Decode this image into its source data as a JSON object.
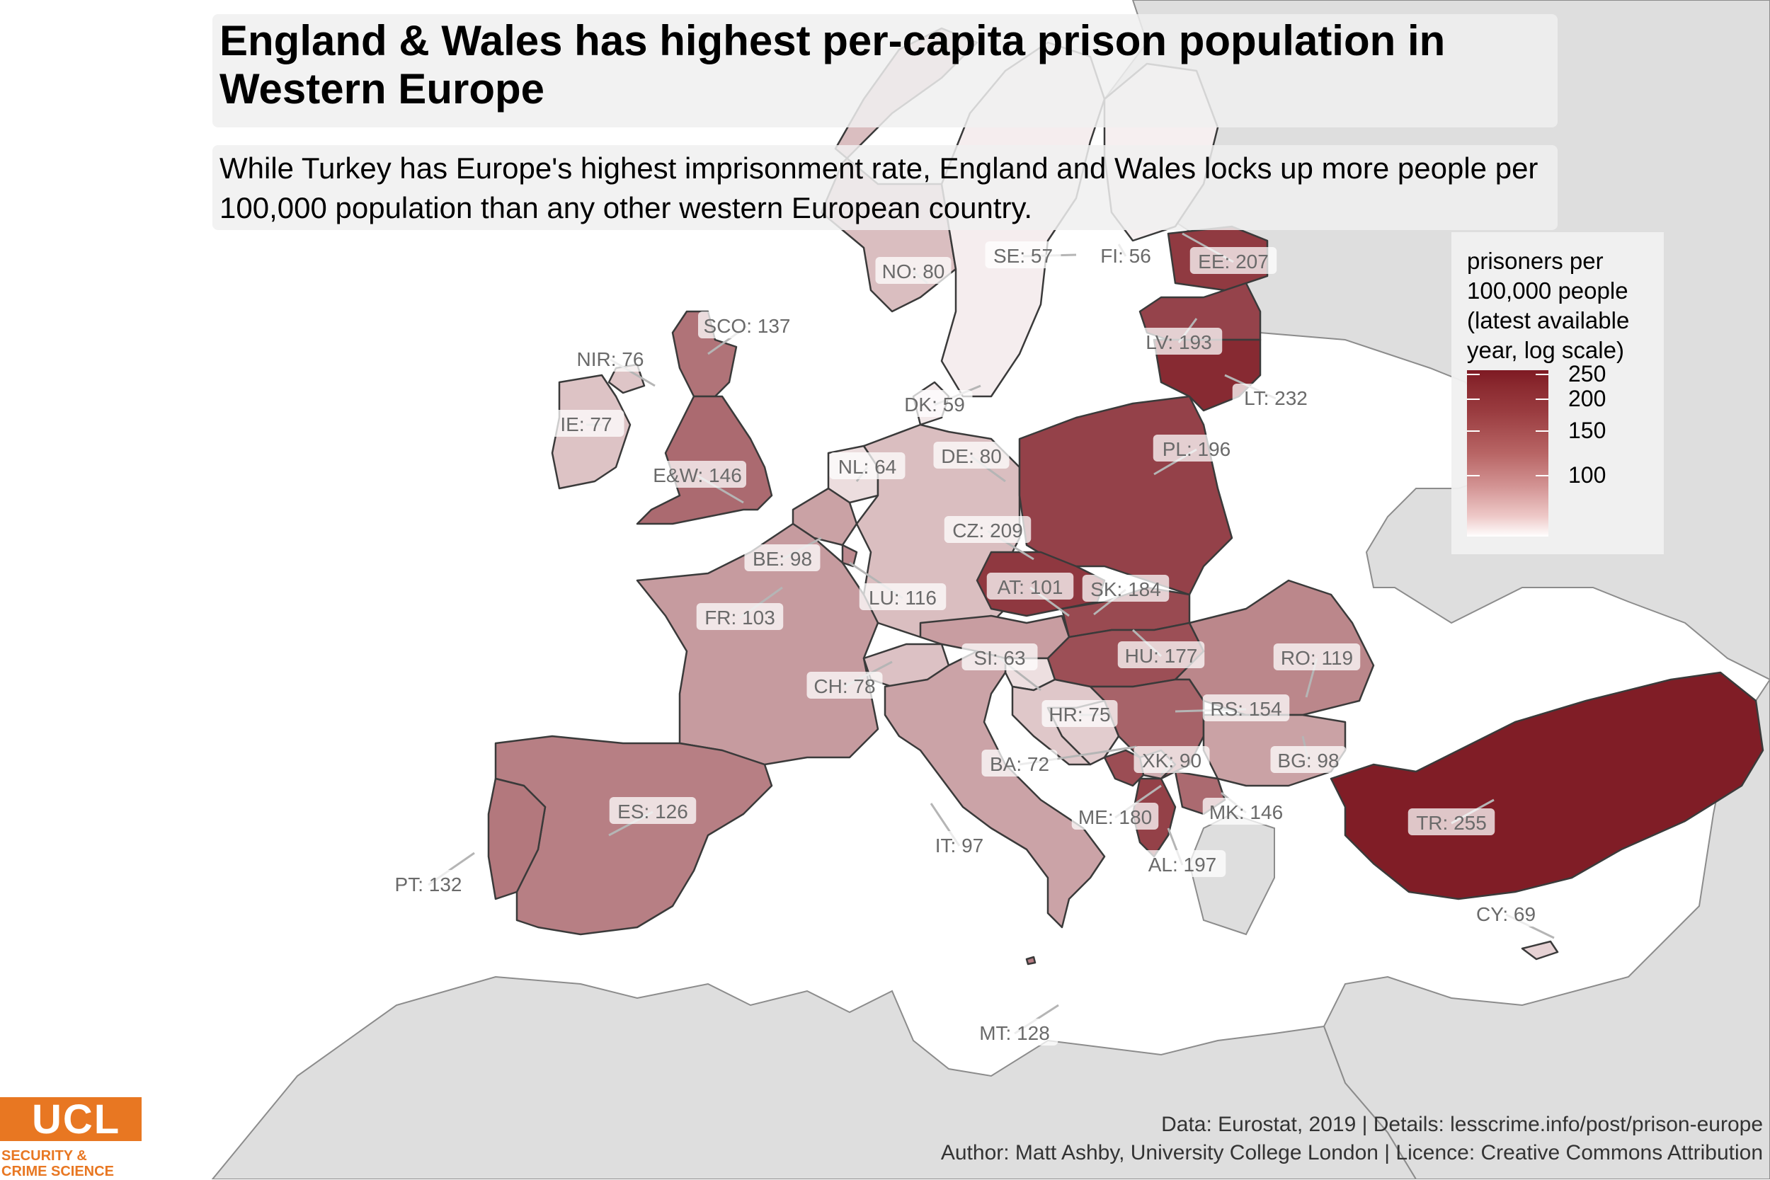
{
  "title": "England & Wales has highest per-capita prison population in Western Europe",
  "subtitle": "While Turkey has Europe's highest imprisonment rate, England and Wales locks up more people per 100,000 population than any other western European country.",
  "legend": {
    "title": "prisoners per 100,000 people (latest available year, log scale)",
    "ticks": [
      "250",
      "200",
      "150",
      "100"
    ],
    "scale": "log",
    "color_low": "#ffffff",
    "color_high": "#7e1a23"
  },
  "caption": {
    "line1": "Data: Eurostat, 2019 |  Details: lesscrime.info/post/prison-europe",
    "line2": "Author: Matt Ashby, University College London |  Licence: Creative Commons Attribution"
  },
  "logo": {
    "name": "UCL",
    "line1": "SECURITY &",
    "line2": "CRIME SCIENCE"
  },
  "countries": [
    {
      "code": "NO",
      "label": "NO: 80",
      "value": 80
    },
    {
      "code": "SE",
      "label": "SE: 57",
      "value": 57
    },
    {
      "code": "FI",
      "label": "FI: 56",
      "value": 56
    },
    {
      "code": "EE",
      "label": "EE: 207",
      "value": 207
    },
    {
      "code": "LV",
      "label": "LV: 193",
      "value": 193
    },
    {
      "code": "LT",
      "label": "LT: 232",
      "value": 232
    },
    {
      "code": "SCO",
      "label": "SCO: 137",
      "value": 137
    },
    {
      "code": "NIR",
      "label": "NIR: 76",
      "value": 76
    },
    {
      "code": "IE",
      "label": "IE: 77",
      "value": 77
    },
    {
      "code": "E&W",
      "label": "E&W: 146",
      "value": 146
    },
    {
      "code": "DK",
      "label": "DK: 59",
      "value": 59
    },
    {
      "code": "NL",
      "label": "NL: 64",
      "value": 64
    },
    {
      "code": "DE",
      "label": "DE: 80",
      "value": 80
    },
    {
      "code": "PL",
      "label": "PL: 196",
      "value": 196
    },
    {
      "code": "BE",
      "label": "BE: 98",
      "value": 98
    },
    {
      "code": "CZ",
      "label": "CZ: 209",
      "value": 209
    },
    {
      "code": "LU",
      "label": "LU: 116",
      "value": 116
    },
    {
      "code": "AT",
      "label": "AT: 101",
      "value": 101
    },
    {
      "code": "SK",
      "label": "SK: 184",
      "value": 184
    },
    {
      "code": "FR",
      "label": "FR: 103",
      "value": 103
    },
    {
      "code": "SI",
      "label": "SI: 63",
      "value": 63
    },
    {
      "code": "HU",
      "label": "HU: 177",
      "value": 177
    },
    {
      "code": "RO",
      "label": "RO: 119",
      "value": 119
    },
    {
      "code": "CH",
      "label": "CH: 78",
      "value": 78
    },
    {
      "code": "HR",
      "label": "HR: 75",
      "value": 75
    },
    {
      "code": "RS",
      "label": "RS: 154",
      "value": 154
    },
    {
      "code": "BA",
      "label": "BA: 72",
      "value": 72
    },
    {
      "code": "XK",
      "label": "XK: 90",
      "value": 90
    },
    {
      "code": "BG",
      "label": "BG: 98",
      "value": 98
    },
    {
      "code": "ES",
      "label": "ES: 126",
      "value": 126
    },
    {
      "code": "ME",
      "label": "ME: 180",
      "value": 180
    },
    {
      "code": "MK",
      "label": "MK: 146",
      "value": 146
    },
    {
      "code": "TR",
      "label": "TR: 255",
      "value": 255
    },
    {
      "code": "IT",
      "label": "IT: 97",
      "value": 97
    },
    {
      "code": "AL",
      "label": "AL: 197",
      "value": 197
    },
    {
      "code": "PT",
      "label": "PT: 132",
      "value": 132
    },
    {
      "code": "CY",
      "label": "CY: 69",
      "value": 69
    },
    {
      "code": "MT",
      "label": "MT: 128",
      "value": 128
    }
  ]
}
